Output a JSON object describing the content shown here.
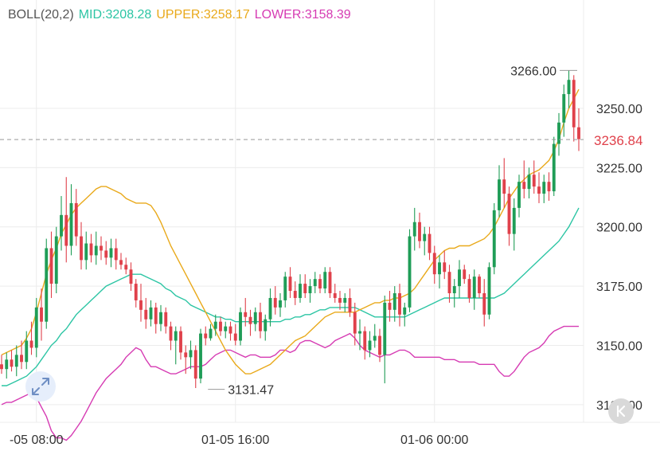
{
  "indicator": {
    "name": "BOLL(20,2)",
    "mid_label": "MID:3208.28",
    "upper_label": "UPPER:3258.17",
    "lower_label": "LOWER:3158.39"
  },
  "colors": {
    "up": "#1f9d57",
    "down": "#e0414b",
    "mid": "#2cc5a4",
    "upper": "#e9a91a",
    "lower": "#d63bb3",
    "grid": "#ececec",
    "price_line": "#999999"
  },
  "icons": {
    "zoom": "expand-arrows-icon",
    "back": "chevron-left-icon"
  },
  "chart_data": {
    "type": "candlestick",
    "y_ticks": [
      "3250.00",
      "3225.00",
      "3200.00",
      "3175.00",
      "3150.00",
      "3125.00"
    ],
    "x_ticks": [
      {
        "label": "-05 08:00",
        "candle": 7
      },
      {
        "label": "01-05 16:00",
        "candle": 47
      },
      {
        "label": "01-06 00:00",
        "candle": 87
      }
    ],
    "ylim": [
      3112,
      3275
    ],
    "current_price": 3236.84,
    "current_price_label": "3236.84",
    "high_label": "3266.00",
    "high_value": 3266.0,
    "high_candle": 116,
    "low_label": "3131.47",
    "low_value": 3131.47,
    "low_candle": 41,
    "candles": [
      [
        3142,
        3146,
        3138,
        3140
      ],
      [
        3140,
        3147,
        3136,
        3144
      ],
      [
        3144,
        3148,
        3139,
        3141
      ],
      [
        3141,
        3150,
        3137,
        3146
      ],
      [
        3146,
        3152,
        3140,
        3143
      ],
      [
        3143,
        3156,
        3140,
        3152
      ],
      [
        3152,
        3160,
        3146,
        3149
      ],
      [
        3149,
        3170,
        3145,
        3166
      ],
      [
        3166,
        3174,
        3152,
        3160
      ],
      [
        3160,
        3195,
        3157,
        3191
      ],
      [
        3191,
        3198,
        3170,
        3176
      ],
      [
        3176,
        3200,
        3172,
        3196
      ],
      [
        3196,
        3213,
        3190,
        3205
      ],
      [
        3205,
        3221,
        3185,
        3192
      ],
      [
        3192,
        3218,
        3188,
        3210
      ],
      [
        3210,
        3216,
        3192,
        3196
      ],
      [
        3196,
        3202,
        3182,
        3186
      ],
      [
        3186,
        3198,
        3182,
        3193
      ],
      [
        3193,
        3197,
        3185,
        3188
      ],
      [
        3188,
        3198,
        3184,
        3192
      ],
      [
        3192,
        3196,
        3186,
        3190
      ],
      [
        3190,
        3194,
        3184,
        3187
      ],
      [
        3187,
        3195,
        3183,
        3191
      ],
      [
        3191,
        3195,
        3182,
        3186
      ],
      [
        3186,
        3189,
        3182,
        3184
      ],
      [
        3184,
        3187,
        3180,
        3182
      ],
      [
        3182,
        3185,
        3173,
        3176
      ],
      [
        3176,
        3178,
        3166,
        3169
      ],
      [
        3169,
        3176,
        3160,
        3165
      ],
      [
        3165,
        3170,
        3157,
        3161
      ],
      [
        3161,
        3169,
        3158,
        3166
      ],
      [
        3166,
        3168,
        3155,
        3159
      ],
      [
        3159,
        3167,
        3156,
        3164
      ],
      [
        3164,
        3166,
        3155,
        3158
      ],
      [
        3158,
        3160,
        3148,
        3152
      ],
      [
        3152,
        3158,
        3142,
        3156
      ],
      [
        3156,
        3158,
        3144,
        3147
      ],
      [
        3147,
        3150,
        3138,
        3145
      ],
      [
        3145,
        3152,
        3140,
        3148
      ],
      [
        3148,
        3150,
        3132,
        3136
      ],
      [
        3136,
        3157,
        3134,
        3155
      ],
      [
        3155,
        3158,
        3150,
        3153
      ],
      [
        3153,
        3159,
        3152,
        3157
      ],
      [
        3157,
        3163,
        3154,
        3160
      ],
      [
        3160,
        3162,
        3154,
        3156
      ],
      [
        3156,
        3160,
        3153,
        3158
      ],
      [
        3158,
        3160,
        3152,
        3155
      ],
      [
        3155,
        3159,
        3150,
        3152
      ],
      [
        3152,
        3166,
        3150,
        3164
      ],
      [
        3164,
        3170,
        3158,
        3162
      ],
      [
        3162,
        3165,
        3154,
        3159
      ],
      [
        3159,
        3166,
        3156,
        3164
      ],
      [
        3164,
        3168,
        3153,
        3156
      ],
      [
        3156,
        3163,
        3152,
        3161
      ],
      [
        3161,
        3174,
        3158,
        3170
      ],
      [
        3170,
        3175,
        3163,
        3166
      ],
      [
        3166,
        3172,
        3162,
        3169
      ],
      [
        3169,
        3181,
        3166,
        3179
      ],
      [
        3179,
        3183,
        3170,
        3173
      ],
      [
        3173,
        3177,
        3167,
        3170
      ],
      [
        3170,
        3180,
        3168,
        3176
      ],
      [
        3176,
        3180,
        3170,
        3172
      ],
      [
        3172,
        3178,
        3168,
        3175
      ],
      [
        3175,
        3181,
        3172,
        3178
      ],
      [
        3178,
        3180,
        3172,
        3174
      ],
      [
        3174,
        3183,
        3172,
        3181
      ],
      [
        3181,
        3183,
        3170,
        3172
      ],
      [
        3172,
        3176,
        3168,
        3170
      ],
      [
        3170,
        3173,
        3165,
        3168
      ],
      [
        3168,
        3172,
        3164,
        3170
      ],
      [
        3170,
        3174,
        3162,
        3164
      ],
      [
        3164,
        3168,
        3150,
        3155
      ],
      [
        3155,
        3161,
        3148,
        3156
      ],
      [
        3156,
        3158,
        3144,
        3148
      ],
      [
        3148,
        3156,
        3145,
        3152
      ],
      [
        3152,
        3159,
        3149,
        3154
      ],
      [
        3154,
        3157,
        3143,
        3146
      ],
      [
        3146,
        3171,
        3134,
        3168
      ],
      [
        3168,
        3173,
        3160,
        3165
      ],
      [
        3165,
        3175,
        3160,
        3172
      ],
      [
        3172,
        3176,
        3158,
        3163
      ],
      [
        3163,
        3168,
        3158,
        3166
      ],
      [
        3166,
        3199,
        3164,
        3196
      ],
      [
        3196,
        3208,
        3190,
        3202
      ],
      [
        3202,
        3206,
        3191,
        3194
      ],
      [
        3194,
        3200,
        3188,
        3197
      ],
      [
        3197,
        3200,
        3186,
        3189
      ],
      [
        3189,
        3192,
        3176,
        3180
      ],
      [
        3180,
        3188,
        3174,
        3185
      ],
      [
        3185,
        3190,
        3178,
        3181
      ],
      [
        3181,
        3184,
        3168,
        3172
      ],
      [
        3172,
        3178,
        3166,
        3175
      ],
      [
        3175,
        3186,
        3170,
        3182
      ],
      [
        3182,
        3184,
        3176,
        3178
      ],
      [
        3178,
        3180,
        3168,
        3170
      ],
      [
        3170,
        3182,
        3165,
        3179
      ],
      [
        3179,
        3180,
        3170,
        3172
      ],
      [
        3172,
        3178,
        3158,
        3163
      ],
      [
        3163,
        3185,
        3161,
        3183
      ],
      [
        3183,
        3210,
        3180,
        3207
      ],
      [
        3207,
        3226,
        3204,
        3220
      ],
      [
        3220,
        3229,
        3208,
        3214
      ],
      [
        3214,
        3217,
        3192,
        3197
      ],
      [
        3197,
        3212,
        3190,
        3208
      ],
      [
        3208,
        3222,
        3204,
        3219
      ],
      [
        3219,
        3228,
        3212,
        3216
      ],
      [
        3216,
        3225,
        3212,
        3222
      ],
      [
        3222,
        3228,
        3214,
        3217
      ],
      [
        3217,
        3223,
        3210,
        3214
      ],
      [
        3214,
        3222,
        3210,
        3219
      ],
      [
        3219,
        3223,
        3211,
        3215
      ],
      [
        3215,
        3238,
        3213,
        3235
      ],
      [
        3235,
        3248,
        3230,
        3244
      ],
      [
        3244,
        3260,
        3238,
        3256
      ],
      [
        3256,
        3266,
        3250,
        3262
      ],
      [
        3262,
        3264,
        3236,
        3242
      ],
      [
        3242,
        3250,
        3232,
        3237
      ]
    ],
    "upper_band": [
      3146,
      3147,
      3148,
      3149,
      3150,
      3153,
      3157,
      3164,
      3172,
      3180,
      3186,
      3191,
      3197,
      3201,
      3205,
      3208,
      3210,
      3212,
      3214,
      3216,
      3217,
      3217,
      3216,
      3215,
      3214,
      3212,
      3211,
      3210,
      3210,
      3210,
      3209,
      3206,
      3202,
      3197,
      3192,
      3188,
      3184,
      3180,
      3176,
      3172,
      3168,
      3164,
      3160,
      3156,
      3152,
      3148,
      3145,
      3142,
      3140,
      3138,
      3138,
      3139,
      3140,
      3141,
      3142,
      3144,
      3146,
      3148,
      3150,
      3152,
      3153,
      3154,
      3156,
      3158,
      3160,
      3162,
      3163,
      3164,
      3164,
      3164,
      3164,
      3164,
      3165,
      3166,
      3167,
      3168,
      3168,
      3169,
      3169,
      3170,
      3170,
      3171,
      3172,
      3174,
      3177,
      3180,
      3183,
      3186,
      3188,
      3190,
      3191,
      3191,
      3192,
      3192,
      3192,
      3193,
      3194,
      3195,
      3197,
      3200,
      3204,
      3208,
      3212,
      3215,
      3218,
      3220,
      3222,
      3223,
      3224,
      3226,
      3228,
      3232,
      3237,
      3244,
      3250,
      3254,
      3258
    ],
    "mid_band": [
      3133,
      3133,
      3134,
      3135,
      3136,
      3137,
      3139,
      3141,
      3144,
      3147,
      3150,
      3152,
      3155,
      3157,
      3160,
      3163,
      3165,
      3167,
      3169,
      3171,
      3173,
      3175,
      3176,
      3177,
      3178,
      3179,
      3180,
      3180,
      3180,
      3179,
      3178,
      3177,
      3176,
      3174,
      3173,
      3171,
      3170,
      3169,
      3167,
      3166,
      3165,
      3164,
      3163,
      3162,
      3162,
      3161,
      3161,
      3160,
      3160,
      3160,
      3160,
      3160,
      3160,
      3160,
      3160,
      3160,
      3160,
      3161,
      3161,
      3162,
      3162,
      3163,
      3163,
      3164,
      3165,
      3165,
      3166,
      3166,
      3166,
      3166,
      3166,
      3166,
      3165,
      3164,
      3163,
      3162,
      3162,
      3162,
      3162,
      3162,
      3162,
      3162,
      3163,
      3164,
      3165,
      3166,
      3167,
      3168,
      3169,
      3170,
      3170,
      3170,
      3170,
      3170,
      3170,
      3170,
      3170,
      3170,
      3170,
      3170,
      3171,
      3172,
      3174,
      3176,
      3178,
      3180,
      3182,
      3184,
      3186,
      3188,
      3190,
      3192,
      3194,
      3197,
      3200,
      3204,
      3208
    ],
    "lower_band": [
      3125,
      3126,
      3126,
      3127,
      3128,
      3129,
      3130,
      3128,
      3124,
      3120,
      3114,
      3111,
      3111,
      3110,
      3112,
      3115,
      3118,
      3122,
      3126,
      3130,
      3133,
      3136,
      3138,
      3140,
      3142,
      3145,
      3147,
      3149,
      3148,
      3144,
      3141,
      3141,
      3140,
      3139,
      3138,
      3138,
      3139,
      3140,
      3141,
      3141,
      3141,
      3142,
      3144,
      3146,
      3147,
      3148,
      3148,
      3147,
      3146,
      3145,
      3146,
      3146,
      3145,
      3145,
      3145,
      3146,
      3148,
      3148,
      3147,
      3148,
      3151,
      3152,
      3152,
      3151,
      3150,
      3149,
      3150,
      3152,
      3153,
      3154,
      3155,
      3153,
      3150,
      3148,
      3147,
      3146,
      3145,
      3146,
      3146,
      3147,
      3148,
      3148,
      3147,
      3145,
      3145,
      3145,
      3145,
      3145,
      3145,
      3144,
      3144,
      3144,
      3143,
      3143,
      3143,
      3143,
      3142,
      3142,
      3142,
      3142,
      3139,
      3137,
      3137,
      3139,
      3142,
      3145,
      3147,
      3148,
      3149,
      3151,
      3154,
      3156,
      3157,
      3158,
      3158,
      3158,
      3158
    ]
  }
}
